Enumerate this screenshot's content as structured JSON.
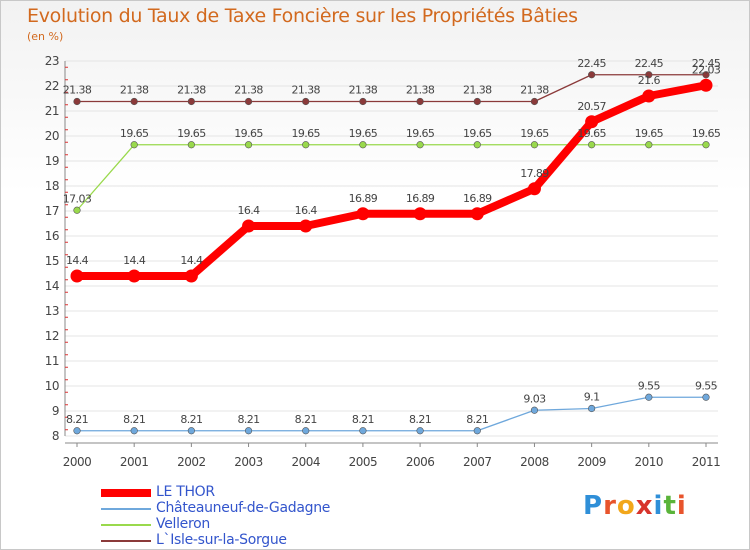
{
  "title": "Evolution du Taux de Taxe Foncière sur les Propriétés Bâties",
  "unit_label": "(en %)",
  "logo": {
    "text": "Proxiti",
    "colors": [
      "#2f8fd8",
      "#e8542c",
      "#f2a71b",
      "#d8342c",
      "#2f8fd8",
      "#5ab43a",
      "#e8542c"
    ]
  },
  "chart_data": {
    "type": "line",
    "title": "Evolution du Taux de Taxe Foncière sur les Propriétés Bâties",
    "ylabel": "(en %)",
    "xlabel": "",
    "ylim": [
      8,
      23
    ],
    "yticks": [
      "8",
      "9",
      "10",
      "11",
      "12",
      "13",
      "14",
      "15",
      "16",
      "17",
      "18",
      "19",
      "20",
      "21",
      "22",
      "23"
    ],
    "categories": [
      "2000",
      "2001",
      "2002",
      "2003",
      "2004",
      "2005",
      "2006",
      "2007",
      "2008",
      "2009",
      "2010",
      "2011"
    ],
    "legend_position": "bottom-left",
    "series": [
      {
        "name": "LE THOR",
        "color": "#ff0000",
        "values": [
          14.4,
          14.4,
          14.4,
          16.4,
          16.4,
          16.89,
          16.89,
          16.89,
          17.89,
          20.57,
          21.6,
          22.03
        ],
        "labels": [
          "14.4",
          "14.4",
          "14.4",
          "16.4",
          "16.4",
          "16.89",
          "16.89",
          "16.89",
          "17.89",
          "20.57",
          "21.6",
          "22.03"
        ]
      },
      {
        "name": "Châteauneuf-de-Gadagne",
        "color": "#6fa8dc",
        "values": [
          8.21,
          8.21,
          8.21,
          8.21,
          8.21,
          8.21,
          8.21,
          8.21,
          9.03,
          9.1,
          9.55,
          9.55
        ],
        "labels": [
          "8.21",
          "8.21",
          "8.21",
          "8.21",
          "8.21",
          "8.21",
          "8.21",
          "8.21",
          "9.03",
          "9.1",
          "9.55",
          "9.55"
        ]
      },
      {
        "name": "Velleron",
        "color": "#99d94c",
        "values": [
          17.03,
          19.65,
          19.65,
          19.65,
          19.65,
          19.65,
          19.65,
          19.65,
          19.65,
          19.65,
          19.65,
          19.65
        ],
        "labels": [
          "17.03",
          "19.65",
          "19.65",
          "19.65",
          "19.65",
          "19.65",
          "19.65",
          "19.65",
          "19.65",
          "19.65",
          "19.65",
          "19.65"
        ]
      },
      {
        "name": "L`Isle-sur-la-Sorgue",
        "color": "#8b3a3a",
        "values": [
          21.38,
          21.38,
          21.38,
          21.38,
          21.38,
          21.38,
          21.38,
          21.38,
          21.38,
          22.45,
          22.45,
          22.45
        ],
        "labels": [
          "21.38",
          "21.38",
          "21.38",
          "21.38",
          "21.38",
          "21.38",
          "21.38",
          "21.38",
          "21.38",
          "22.45",
          "22.45",
          "22.45"
        ]
      }
    ]
  }
}
